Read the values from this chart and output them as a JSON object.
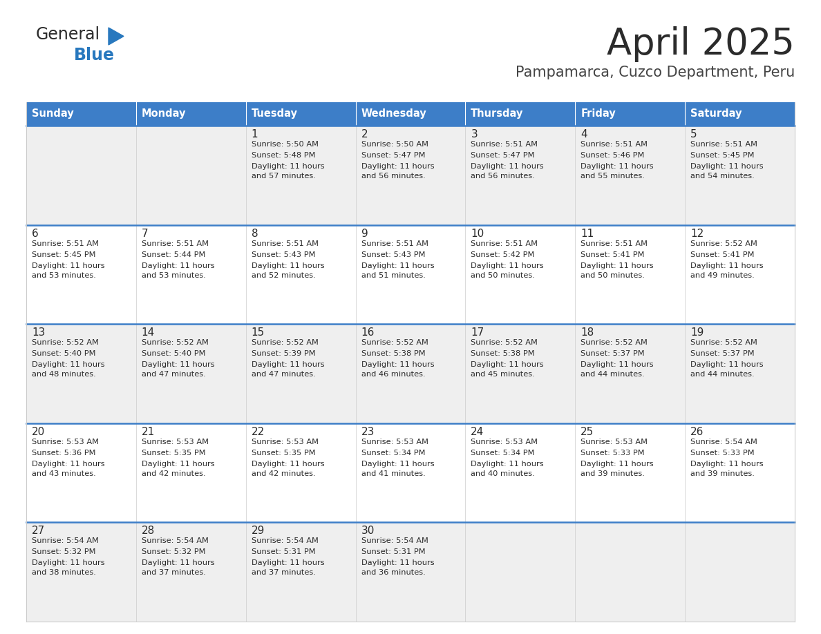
{
  "title": "April 2025",
  "subtitle": "Pampamarca, Cuzco Department, Peru",
  "days_of_week": [
    "Sunday",
    "Monday",
    "Tuesday",
    "Wednesday",
    "Thursday",
    "Friday",
    "Saturday"
  ],
  "header_bg": "#3D7EC8",
  "header_text": "#FFFFFF",
  "row_bg_light": "#EFEFEF",
  "row_bg_white": "#FFFFFF",
  "cell_border": "#DDDDDD",
  "row_divider": "#3D7EC8",
  "title_color": "#2B2B2B",
  "subtitle_color": "#444444",
  "day_number_color": "#2B2B2B",
  "cell_text_color": "#2B2B2B",
  "logo_general_color": "#2B2B2B",
  "logo_blue_color": "#2878BE",
  "logo_triangle_color": "#2878BE",
  "calendar_data": [
    [
      null,
      null,
      {
        "day": 1,
        "sunrise": "5:50 AM",
        "sunset": "5:48 PM",
        "daylight": "11 hours and 57 minutes"
      },
      {
        "day": 2,
        "sunrise": "5:50 AM",
        "sunset": "5:47 PM",
        "daylight": "11 hours and 56 minutes"
      },
      {
        "day": 3,
        "sunrise": "5:51 AM",
        "sunset": "5:47 PM",
        "daylight": "11 hours and 56 minutes"
      },
      {
        "day": 4,
        "sunrise": "5:51 AM",
        "sunset": "5:46 PM",
        "daylight": "11 hours and 55 minutes"
      },
      {
        "day": 5,
        "sunrise": "5:51 AM",
        "sunset": "5:45 PM",
        "daylight": "11 hours and 54 minutes"
      }
    ],
    [
      {
        "day": 6,
        "sunrise": "5:51 AM",
        "sunset": "5:45 PM",
        "daylight": "11 hours and 53 minutes"
      },
      {
        "day": 7,
        "sunrise": "5:51 AM",
        "sunset": "5:44 PM",
        "daylight": "11 hours and 53 minutes"
      },
      {
        "day": 8,
        "sunrise": "5:51 AM",
        "sunset": "5:43 PM",
        "daylight": "11 hours and 52 minutes"
      },
      {
        "day": 9,
        "sunrise": "5:51 AM",
        "sunset": "5:43 PM",
        "daylight": "11 hours and 51 minutes"
      },
      {
        "day": 10,
        "sunrise": "5:51 AM",
        "sunset": "5:42 PM",
        "daylight": "11 hours and 50 minutes"
      },
      {
        "day": 11,
        "sunrise": "5:51 AM",
        "sunset": "5:41 PM",
        "daylight": "11 hours and 50 minutes"
      },
      {
        "day": 12,
        "sunrise": "5:52 AM",
        "sunset": "5:41 PM",
        "daylight": "11 hours and 49 minutes"
      }
    ],
    [
      {
        "day": 13,
        "sunrise": "5:52 AM",
        "sunset": "5:40 PM",
        "daylight": "11 hours and 48 minutes"
      },
      {
        "day": 14,
        "sunrise": "5:52 AM",
        "sunset": "5:40 PM",
        "daylight": "11 hours and 47 minutes"
      },
      {
        "day": 15,
        "sunrise": "5:52 AM",
        "sunset": "5:39 PM",
        "daylight": "11 hours and 47 minutes"
      },
      {
        "day": 16,
        "sunrise": "5:52 AM",
        "sunset": "5:38 PM",
        "daylight": "11 hours and 46 minutes"
      },
      {
        "day": 17,
        "sunrise": "5:52 AM",
        "sunset": "5:38 PM",
        "daylight": "11 hours and 45 minutes"
      },
      {
        "day": 18,
        "sunrise": "5:52 AM",
        "sunset": "5:37 PM",
        "daylight": "11 hours and 44 minutes"
      },
      {
        "day": 19,
        "sunrise": "5:52 AM",
        "sunset": "5:37 PM",
        "daylight": "11 hours and 44 minutes"
      }
    ],
    [
      {
        "day": 20,
        "sunrise": "5:53 AM",
        "sunset": "5:36 PM",
        "daylight": "11 hours and 43 minutes"
      },
      {
        "day": 21,
        "sunrise": "5:53 AM",
        "sunset": "5:35 PM",
        "daylight": "11 hours and 42 minutes"
      },
      {
        "day": 22,
        "sunrise": "5:53 AM",
        "sunset": "5:35 PM",
        "daylight": "11 hours and 42 minutes"
      },
      {
        "day": 23,
        "sunrise": "5:53 AM",
        "sunset": "5:34 PM",
        "daylight": "11 hours and 41 minutes"
      },
      {
        "day": 24,
        "sunrise": "5:53 AM",
        "sunset": "5:34 PM",
        "daylight": "11 hours and 40 minutes"
      },
      {
        "day": 25,
        "sunrise": "5:53 AM",
        "sunset": "5:33 PM",
        "daylight": "11 hours and 39 minutes"
      },
      {
        "day": 26,
        "sunrise": "5:54 AM",
        "sunset": "5:33 PM",
        "daylight": "11 hours and 39 minutes"
      }
    ],
    [
      {
        "day": 27,
        "sunrise": "5:54 AM",
        "sunset": "5:32 PM",
        "daylight": "11 hours and 38 minutes"
      },
      {
        "day": 28,
        "sunrise": "5:54 AM",
        "sunset": "5:32 PM",
        "daylight": "11 hours and 37 minutes"
      },
      {
        "day": 29,
        "sunrise": "5:54 AM",
        "sunset": "5:31 PM",
        "daylight": "11 hours and 37 minutes"
      },
      {
        "day": 30,
        "sunrise": "5:54 AM",
        "sunset": "5:31 PM",
        "daylight": "11 hours and 36 minutes"
      },
      null,
      null,
      null
    ]
  ]
}
